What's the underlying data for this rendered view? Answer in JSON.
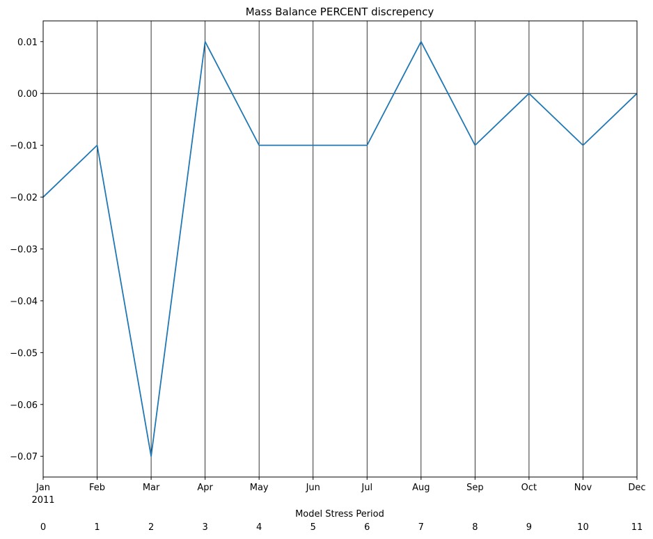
{
  "chart_data": {
    "type": "line",
    "title": "Mass Balance PERCENT discrepency",
    "xlabel": "Model Stress Period",
    "ylabel": "",
    "categories": [
      "Jan",
      "Feb",
      "Mar",
      "Apr",
      "May",
      "Jun",
      "Jul",
      "Aug",
      "Sep",
      "Oct",
      "Nov",
      "Dec"
    ],
    "year_label": "2011",
    "stress_periods": [
      "0",
      "1",
      "2",
      "3",
      "4",
      "5",
      "6",
      "7",
      "8",
      "9",
      "10",
      "11"
    ],
    "series": [
      {
        "values": [
          -0.02,
          -0.01,
          -0.07,
          0.01,
          -0.01,
          -0.01,
          -0.01,
          0.01,
          -0.01,
          0.0,
          -0.01,
          0.0
        ]
      }
    ],
    "ylim": [
      -0.074,
      0.014
    ],
    "yticks": [
      0.01,
      0.0,
      -0.01,
      -0.02,
      -0.03,
      -0.04,
      -0.05,
      -0.06,
      -0.07
    ],
    "ytick_labels": [
      "0.01",
      "0.00",
      "−0.01",
      "−0.02",
      "−0.03",
      "−0.04",
      "−0.05",
      "−0.06",
      "−0.07"
    ],
    "vertical_lines_at_each_period": true,
    "zero_line": true,
    "grid": false,
    "colors": {
      "series": "#1f77b4",
      "guides": "#000000",
      "axes": "#000000"
    }
  }
}
